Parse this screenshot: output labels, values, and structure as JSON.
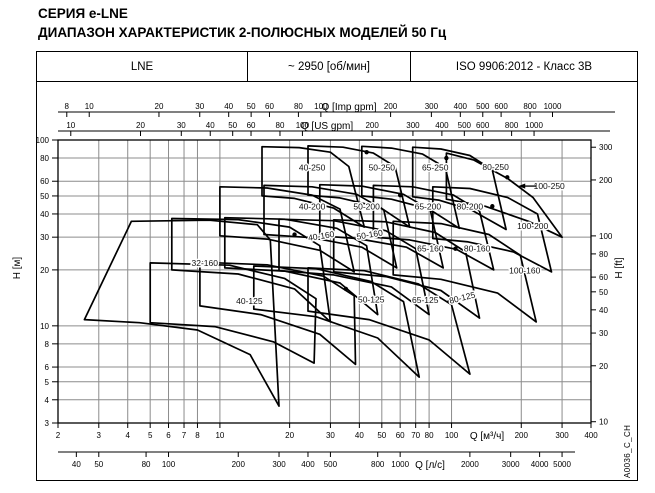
{
  "title": "СЕРИЯ e-LNE",
  "subtitle": "ДИАПАЗОН ХАРАКТЕРИСТИК 2-ПОЛЮСНЫХ МОДЕЛЕЙ 50 Гц",
  "header_table": {
    "model": "LNE",
    "speed": "~ 2950 [об/мин]",
    "standard": "ISO 9906:2012 - Класс 3В"
  },
  "side_code": "A0036_C_CH",
  "chart_data": {
    "type": "area",
    "description": "Log-log coverage envelopes of 2-pole 50 Hz LNE pump models, H [м] vs Q [м³/ч]",
    "q_range": [
      2,
      400
    ],
    "h_range": [
      3,
      100
    ],
    "grid_q": [
      2,
      3,
      4,
      5,
      6,
      7,
      8,
      10,
      20,
      30,
      40,
      50,
      60,
      70,
      80,
      100,
      200,
      300,
      400
    ],
    "grid_h": [
      3,
      4,
      5,
      6,
      8,
      10,
      20,
      30,
      40,
      50,
      60,
      80,
      100
    ],
    "axes": {
      "q_m3h": {
        "label": "Q [м³/ч]",
        "ticks": [
          2,
          3,
          4,
          5,
          6,
          7,
          8,
          10,
          20,
          30,
          40,
          50,
          60,
          70,
          80,
          100,
          200,
          300,
          400
        ],
        "factor": 1
      },
      "q_ls": {
        "label": "Q [л/с]",
        "ticks": [
          40,
          50,
          80,
          100,
          200,
          300,
          400,
          500,
          800,
          1000,
          2000,
          3000,
          4000,
          5000
        ],
        "factor": 0.06
      },
      "q_usgpm": {
        "label": "Q [US gpm]",
        "ticks": [
          10,
          20,
          30,
          40,
          50,
          60,
          80,
          100,
          200,
          300,
          400,
          500,
          600,
          800,
          1000
        ],
        "factor": 0.2271
      },
      "q_impgpm": {
        "label": "Q [Imp gpm]",
        "ticks": [
          8,
          10,
          20,
          30,
          40,
          50,
          60,
          80,
          100,
          200,
          300,
          400,
          500,
          600,
          800,
          1000
        ],
        "factor": 0.2728
      },
      "h_m": {
        "label": "H [м]",
        "ticks": [
          100,
          80,
          60,
          50,
          40,
          30,
          20,
          10,
          8,
          6,
          5,
          4,
          3
        ],
        "factor": 1
      },
      "h_ft": {
        "label": "H [ft]",
        "ticks": [
          300,
          200,
          100,
          80,
          60,
          50,
          40,
          30,
          20,
          10
        ],
        "factor": 0.3048
      }
    },
    "envelopes": [
      {
        "name": "32-160",
        "label_q": 8.6,
        "label_h": 21.8,
        "rot": 0,
        "points": [
          [
            2.6,
            10.8
          ],
          [
            4.15,
            36.5
          ],
          [
            9,
            37
          ],
          [
            14.5,
            35
          ],
          [
            16.5,
            29
          ],
          [
            18,
            3.7
          ],
          [
            13.5,
            7
          ],
          [
            8,
            9.5
          ],
          [
            4.5,
            10.4
          ]
        ]
      },
      {
        "name": "40-125",
        "label_q": 13.4,
        "label_h": 13.6,
        "rot": 0,
        "points": [
          [
            5,
            10.4
          ],
          [
            5,
            21.8
          ],
          [
            11,
            21.2
          ],
          [
            19,
            18
          ],
          [
            26,
            14
          ],
          [
            25.5,
            6.3
          ],
          [
            17,
            8.2
          ],
          [
            9.5,
            9.9
          ]
        ]
      },
      {
        "name": "50-125",
        "label_q": 45,
        "label_h": 13.9,
        "rot": 0,
        "points": [
          [
            8.2,
            12.8
          ],
          [
            8.2,
            22
          ],
          [
            16,
            21.3
          ],
          [
            28,
            18.5
          ],
          [
            38,
            14.5
          ],
          [
            38.5,
            6.2
          ],
          [
            27,
            9
          ],
          [
            15,
            11.5
          ]
        ]
      },
      {
        "name": "65-125",
        "label_q": 77,
        "label_h": 13.8,
        "rot": 0,
        "points": [
          [
            14,
            12.3
          ],
          [
            14,
            21
          ],
          [
            26,
            20.3
          ],
          [
            45,
            17.3
          ],
          [
            62,
            13.5
          ],
          [
            72.5,
            5.3
          ],
          [
            48,
            8.6
          ],
          [
            26,
            11.2
          ]
        ]
      },
      {
        "name": "80-125",
        "label_q": 112,
        "label_h": 14.2,
        "rot": -14,
        "points": [
          [
            24,
            12
          ],
          [
            24,
            20.5
          ],
          [
            42,
            19.8
          ],
          [
            72,
            16.8
          ],
          [
            100,
            13
          ],
          [
            120,
            5.5
          ],
          [
            80,
            8.4
          ],
          [
            44,
            10.8
          ]
        ]
      },
      {
        "name": "40-160",
        "label_q": 27.5,
        "label_h": 30.5,
        "rot": -9,
        "points": [
          [
            6.2,
            20
          ],
          [
            6.2,
            37.8
          ],
          [
            12,
            37.3
          ],
          [
            20,
            34
          ],
          [
            27,
            27
          ],
          [
            30,
            10.5
          ],
          [
            21,
            15.8
          ],
          [
            12,
            19
          ]
        ]
      },
      {
        "name": "50-160",
        "label_q": 44.5,
        "label_h": 31,
        "rot": -9,
        "points": [
          [
            10.5,
            20.5
          ],
          [
            10.5,
            38.2
          ],
          [
            19,
            37.5
          ],
          [
            32,
            33.5
          ],
          [
            43,
            27
          ],
          [
            48,
            11.5
          ],
          [
            33,
            17
          ],
          [
            19,
            19.7
          ]
        ]
      },
      {
        "name": "65-160",
        "label_q": 81,
        "label_h": 26,
        "rot": 0,
        "points": [
          [
            18,
            19.8
          ],
          [
            18,
            37.5
          ],
          [
            31,
            36.8
          ],
          [
            52,
            32.5
          ],
          [
            70,
            26
          ],
          [
            80,
            11.5
          ],
          [
            55,
            16.2
          ],
          [
            31,
            18.8
          ]
        ]
      },
      {
        "name": "80-160",
        "label_q": 129,
        "label_h": 26,
        "rot": 0,
        "points": [
          [
            31,
            19.5
          ],
          [
            31,
            37.2
          ],
          [
            52,
            36.3
          ],
          [
            85,
            31.8
          ],
          [
            115,
            25
          ],
          [
            132,
            11
          ],
          [
            90,
            15.5
          ],
          [
            52,
            18.4
          ]
        ]
      },
      {
        "name": "100-160",
        "label_q": 207,
        "label_h": 19.8,
        "rot": 0,
        "points": [
          [
            56,
            18.8
          ],
          [
            56,
            36.5
          ],
          [
            90,
            35.5
          ],
          [
            145,
            31
          ],
          [
            198,
            24
          ],
          [
            232,
            10.5
          ],
          [
            158,
            15
          ],
          [
            90,
            17.8
          ]
        ]
      },
      {
        "name": "40-200",
        "label_q": 25,
        "label_h": 44,
        "rot": 0,
        "points": [
          [
            10,
            30.5
          ],
          [
            10,
            56
          ],
          [
            16,
            55.2
          ],
          [
            25,
            50.5
          ],
          [
            33,
            42.5
          ],
          [
            38,
            19.5
          ],
          [
            27,
            25.5
          ],
          [
            16,
            29.3
          ]
        ]
      },
      {
        "name": "50-200",
        "label_q": 43,
        "label_h": 44,
        "rot": 0,
        "points": [
          [
            15.5,
            31
          ],
          [
            15.5,
            57
          ],
          [
            25,
            56
          ],
          [
            39,
            51
          ],
          [
            51,
            42
          ],
          [
            58,
            20.5
          ],
          [
            41,
            26.5
          ],
          [
            25,
            29.8
          ]
        ]
      },
      {
        "name": "65-200",
        "label_q": 79,
        "label_h": 43.8,
        "rot": 0,
        "points": [
          [
            27,
            30.5
          ],
          [
            27,
            57.5
          ],
          [
            41,
            56.5
          ],
          [
            62,
            51
          ],
          [
            81,
            42
          ],
          [
            92,
            20.5
          ],
          [
            64,
            26.5
          ],
          [
            39,
            29.5
          ]
        ]
      },
      {
        "name": "80-200",
        "label_q": 120,
        "label_h": 44,
        "rot": 0,
        "points": [
          [
            46,
            30
          ],
          [
            46,
            57
          ],
          [
            68,
            56
          ],
          [
            102,
            50.5
          ],
          [
            132,
            41.5
          ],
          [
            152,
            20
          ],
          [
            105,
            25.8
          ],
          [
            66,
            29
          ]
        ]
      },
      {
        "name": "100-200",
        "label_q": 224,
        "label_h": 34.5,
        "rot": 0,
        "points": [
          [
            83,
            29.5
          ],
          [
            83,
            56
          ],
          [
            120,
            54.8
          ],
          [
            175,
            49
          ],
          [
            235,
            40
          ],
          [
            270,
            19.5
          ],
          [
            185,
            25
          ],
          [
            118,
            28.3
          ]
        ]
      },
      {
        "name": "40-250",
        "label_q": 25,
        "label_h": 71,
        "rot": 0,
        "points": [
          [
            15.2,
            50
          ],
          [
            15.2,
            92
          ],
          [
            22,
            91
          ],
          [
            30,
            86
          ],
          [
            36,
            72
          ],
          [
            42,
            34
          ],
          [
            31,
            43
          ],
          [
            21,
            48.5
          ]
        ]
      },
      {
        "name": "50-250",
        "label_q": 50,
        "label_h": 71,
        "rot": 0,
        "points": [
          [
            24,
            50.5
          ],
          [
            24,
            93
          ],
          [
            34,
            91.5
          ],
          [
            46,
            85
          ],
          [
            57,
            72
          ],
          [
            66,
            34
          ],
          [
            49,
            43.5
          ],
          [
            33,
            48.8
          ]
        ]
      },
      {
        "name": "65-250",
        "label_q": 85,
        "label_h": 71,
        "rot": 0,
        "points": [
          [
            41,
            50
          ],
          [
            41,
            92.5
          ],
          [
            55,
            90.5
          ],
          [
            75,
            84
          ],
          [
            94,
            71
          ],
          [
            108,
            33.5
          ],
          [
            80,
            42.5
          ],
          [
            55,
            48
          ]
        ]
      },
      {
        "name": "80-250",
        "label_q": 155,
        "label_h": 71.5,
        "rot": 0,
        "points": [
          [
            68,
            49.5
          ],
          [
            68,
            91.5
          ],
          [
            90,
            89.5
          ],
          [
            120,
            82.5
          ],
          [
            150,
            69
          ],
          [
            172,
            33
          ],
          [
            122,
            42
          ],
          [
            88,
            47.5
          ]
        ]
      },
      {
        "name": "100-250",
        "label_q": 264,
        "label_h": 56.5,
        "rot": 0,
        "leader": {
          "from_q": 232,
          "to_q": 194,
          "h": 56.5
        },
        "points": [
          [
            95,
            48
          ],
          [
            95,
            85
          ],
          [
            125,
            78
          ],
          [
            175,
            62
          ],
          [
            225,
            49
          ],
          [
            300,
            30
          ],
          [
            215,
            36.5
          ],
          [
            140,
            44
          ]
        ]
      }
    ],
    "curve_dots": [
      [
        43,
        86
      ],
      [
        95,
        80
      ],
      [
        174,
        63
      ],
      [
        60,
        50.5
      ],
      [
        21,
        31
      ],
      [
        47,
        31.5
      ],
      [
        104,
        26
      ],
      [
        150,
        44
      ],
      [
        35,
        15.8
      ],
      [
        98,
        13.5
      ]
    ],
    "colors": {
      "curve": "#000000",
      "grid": "#8c8c8c",
      "frame": "#000000",
      "text": "#000000"
    }
  }
}
